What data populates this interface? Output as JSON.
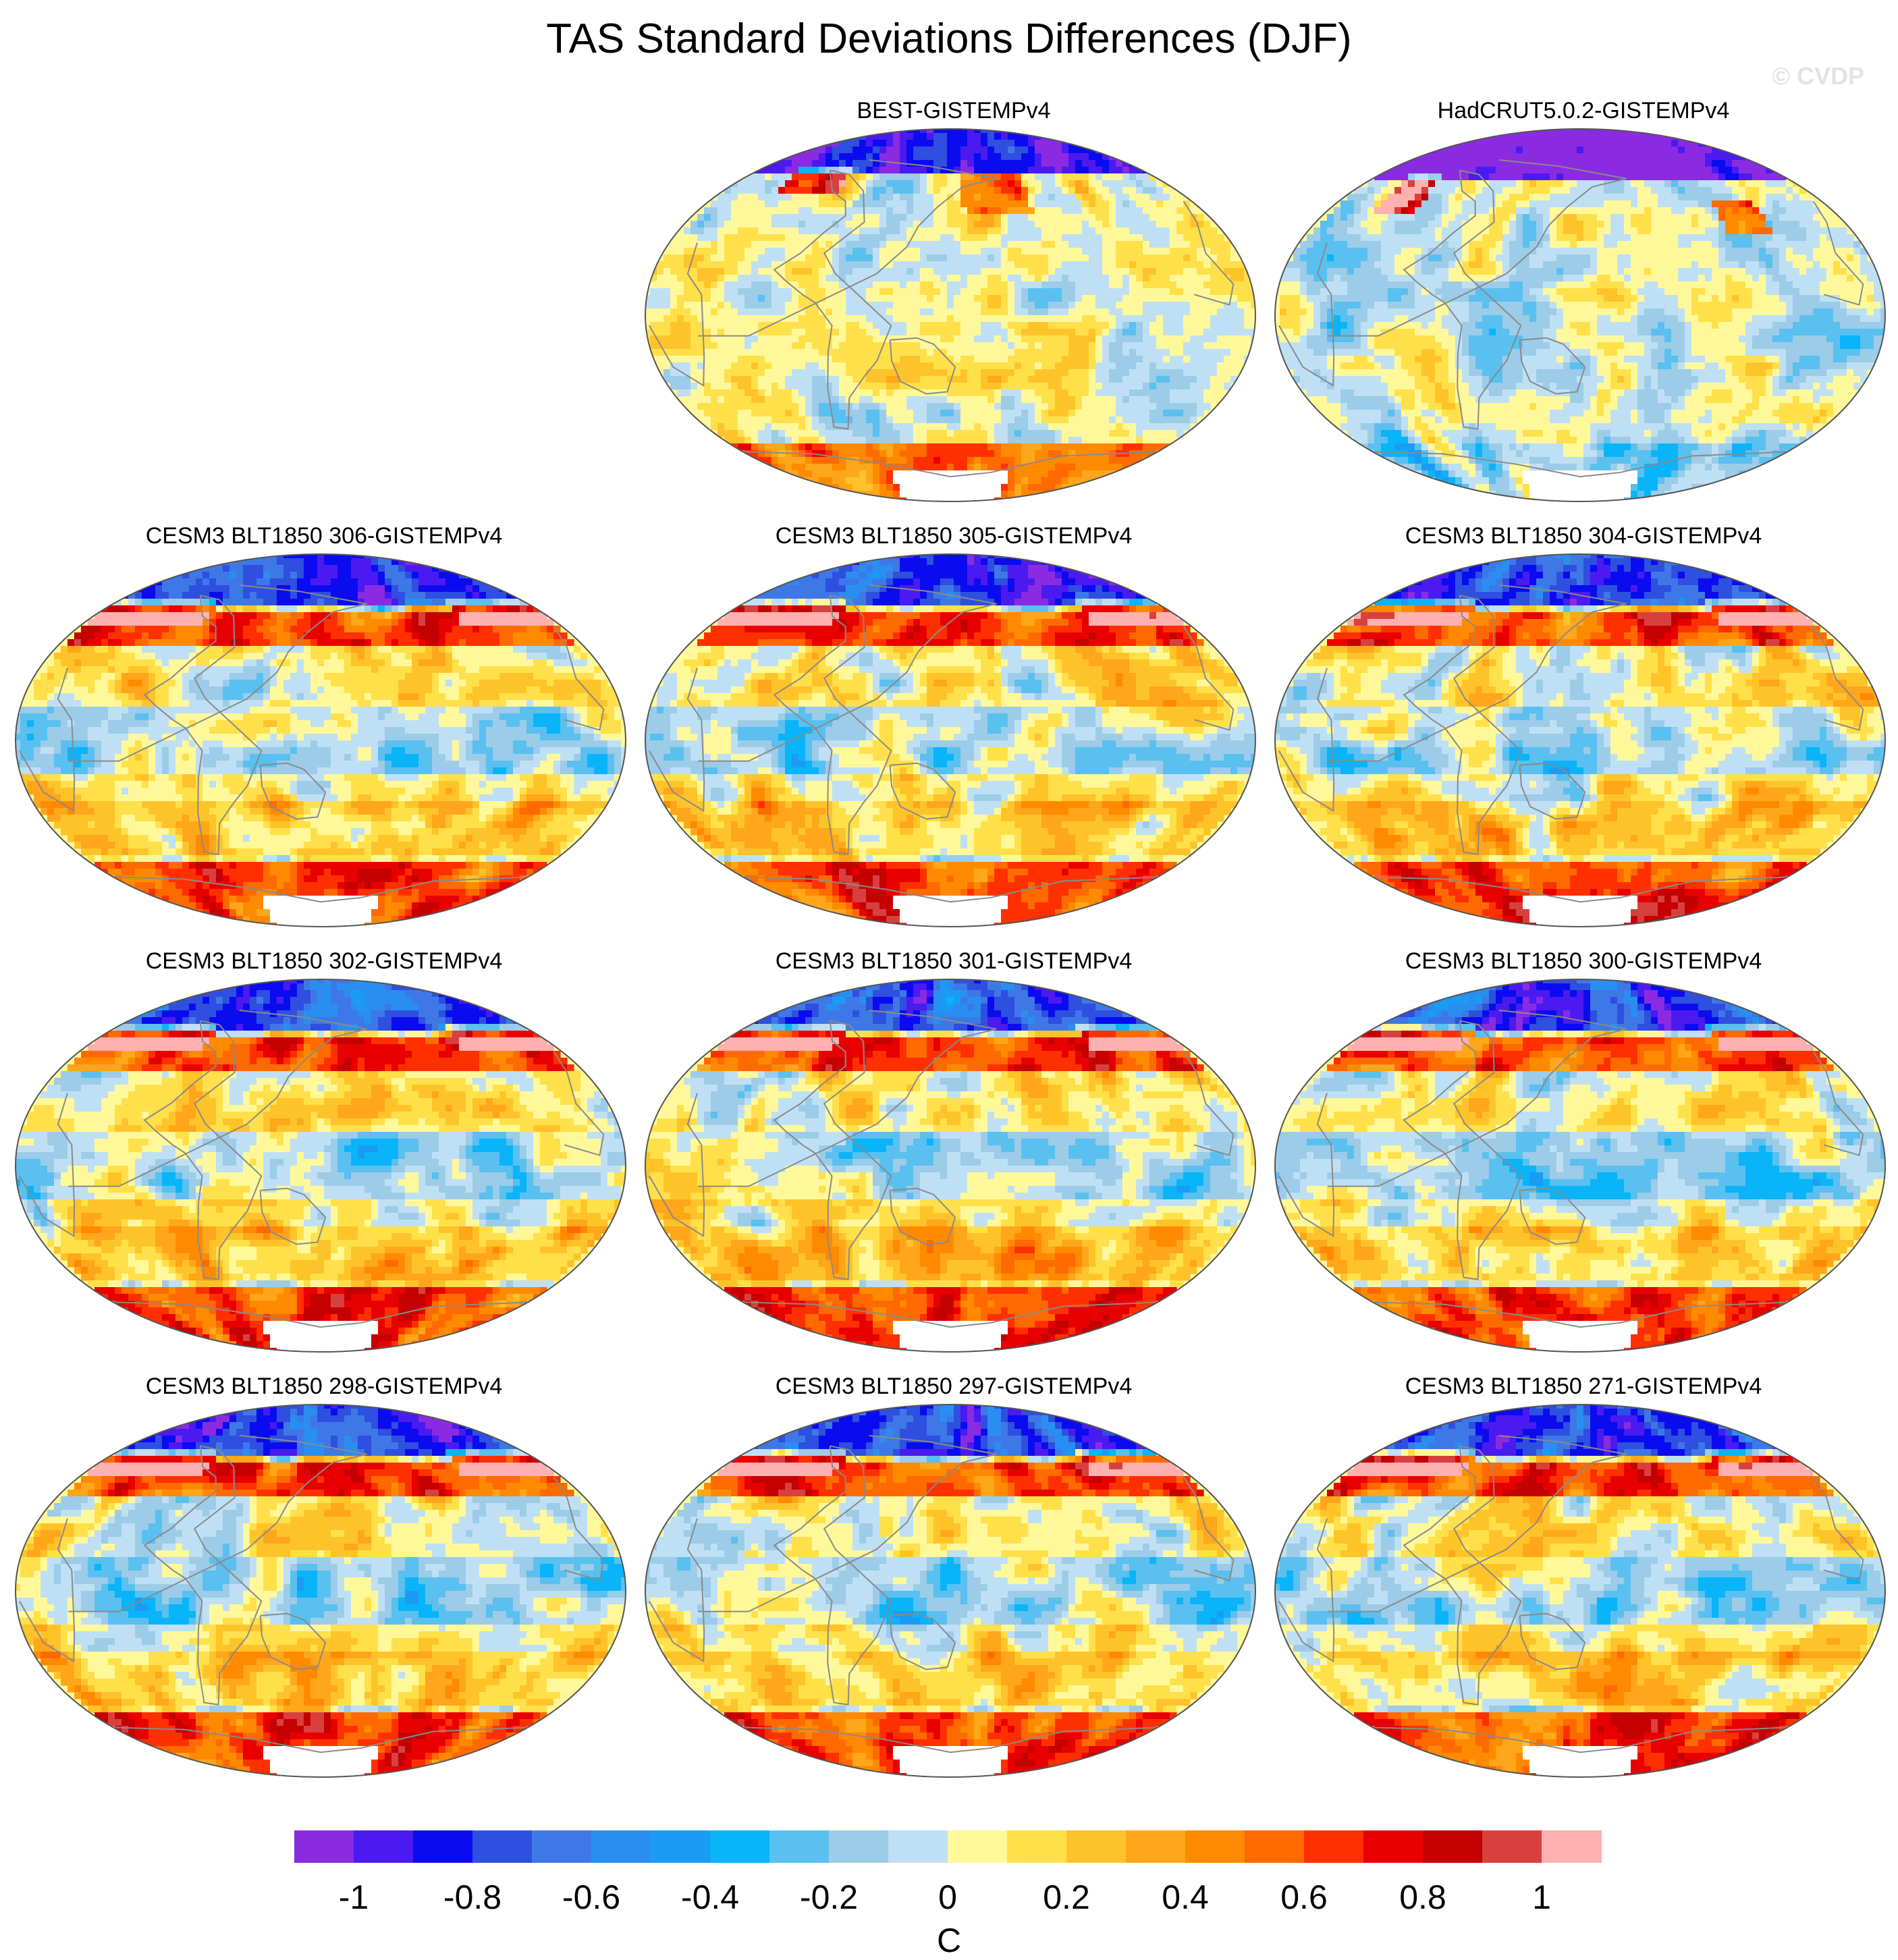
{
  "title": "TAS Standard Deviations Differences (DJF)",
  "watermark": "© CVDP",
  "chart_data": {
    "type": "heatmap",
    "projection": "Robinson (Pacific-centred)",
    "variable": "TAS standard deviation difference",
    "season": "DJF",
    "units": "C",
    "panels": [
      {
        "label": "BEST-GISTEMPv4",
        "pattern": "obs-a"
      },
      {
        "label": "HadCRUT5.0.2-GISTEMPv4",
        "pattern": "obs-b"
      },
      {
        "label": "CESM3 BLT1850 306-GISTEMPv4",
        "pattern": "model"
      },
      {
        "label": "CESM3 BLT1850 305-GISTEMPv4",
        "pattern": "model"
      },
      {
        "label": "CESM3 BLT1850 304-GISTEMPv4",
        "pattern": "model"
      },
      {
        "label": "CESM3 BLT1850 302-GISTEMPv4",
        "pattern": "model"
      },
      {
        "label": "CESM3 BLT1850 301-GISTEMPv4",
        "pattern": "model"
      },
      {
        "label": "CESM3 BLT1850 300-GISTEMPv4",
        "pattern": "model"
      },
      {
        "label": "CESM3 BLT1850 298-GISTEMPv4",
        "pattern": "model"
      },
      {
        "label": "CESM3 BLT1850 297-GISTEMPv4",
        "pattern": "model"
      },
      {
        "label": "CESM3 BLT1850 271-GISTEMPv4",
        "pattern": "model"
      }
    ],
    "colorbar": {
      "levels": [
        -1.1,
        -1,
        -0.9,
        -0.8,
        -0.7,
        -0.6,
        -0.5,
        -0.4,
        -0.3,
        -0.2,
        -0.1,
        0,
        0.1,
        0.2,
        0.3,
        0.4,
        0.5,
        0.6,
        0.7,
        0.8,
        0.9,
        1,
        1.1
      ],
      "colors": [
        "#8a2be2",
        "#4b1af0",
        "#0b0bf0",
        "#2e4fe0",
        "#3e78e6",
        "#2a8ef0",
        "#1a9cf4",
        "#0ab4f8",
        "#5ac0f0",
        "#9ccce8",
        "#bfe0f4",
        "#fff89a",
        "#ffe04a",
        "#ffc32a",
        "#ffa61a",
        "#ff8a00",
        "#ff6a00",
        "#ff3000",
        "#e80000",
        "#c40000",
        "#d84040",
        "#ffb0b0"
      ],
      "tick_labels": [
        "-1",
        "-0.8",
        "-0.6",
        "-0.4",
        "-0.2",
        "0",
        "0.2",
        "0.4",
        "0.6",
        "0.8",
        "1"
      ],
      "tick_values": [
        -1,
        -0.8,
        -0.6,
        -0.4,
        -0.2,
        0,
        0.2,
        0.4,
        0.6,
        0.8,
        1
      ],
      "unit_label": "C"
    }
  }
}
